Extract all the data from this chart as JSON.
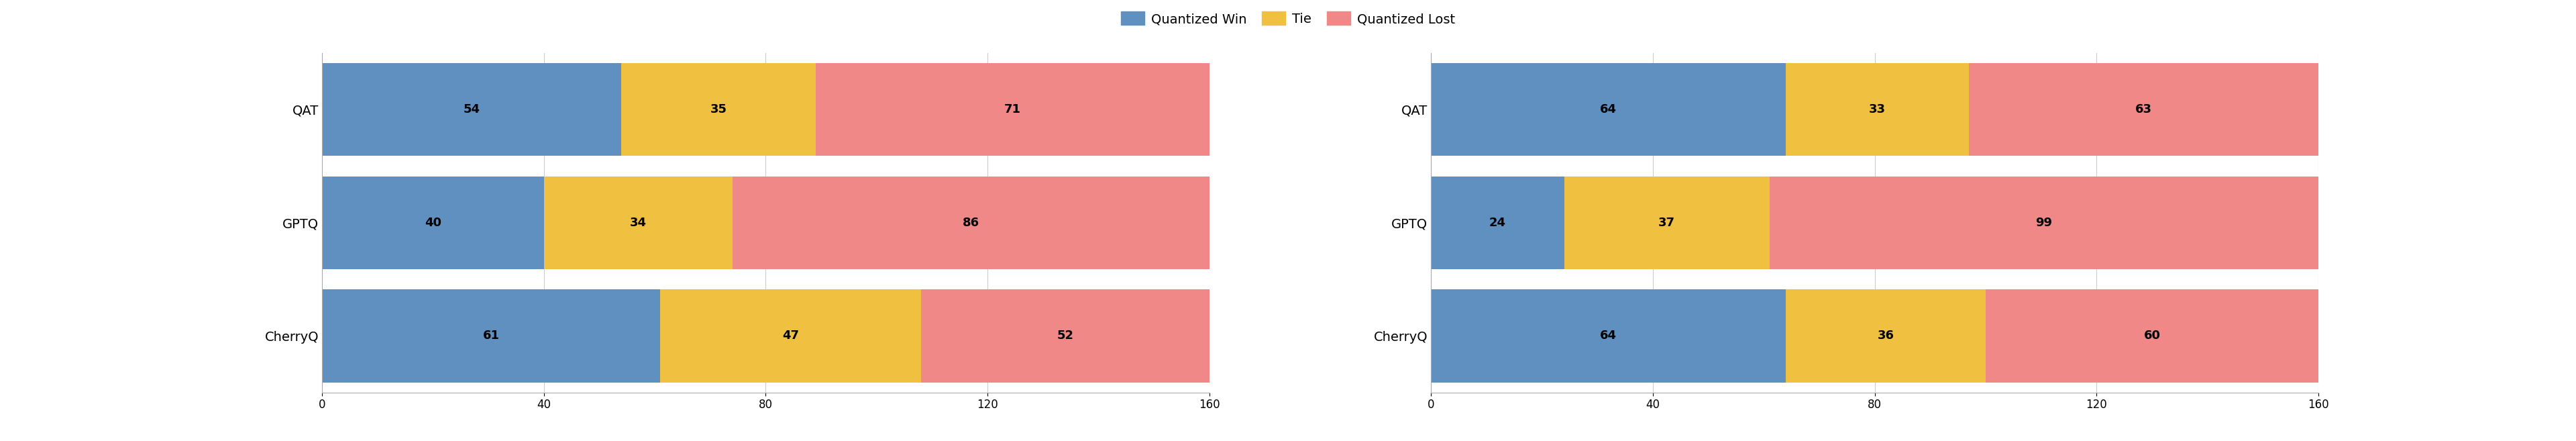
{
  "left": {
    "categories": [
      "QAT",
      "GPTQ",
      "CherryQ"
    ],
    "win": [
      54,
      40,
      61
    ],
    "tie": [
      35,
      34,
      47
    ],
    "lost": [
      71,
      86,
      52
    ]
  },
  "right": {
    "categories": [
      "QAT",
      "GPTQ",
      "CherryQ"
    ],
    "win": [
      64,
      24,
      64
    ],
    "tie": [
      33,
      37,
      36
    ],
    "lost": [
      63,
      99,
      60
    ]
  },
  "xlim": [
    0,
    160
  ],
  "xticks": [
    0,
    40,
    80,
    120,
    160
  ],
  "color_win": "#6090c0",
  "color_tie": "#f0c040",
  "color_lost": "#f08888",
  "legend_labels": [
    "Quantized Win",
    "Tie",
    "Quantized Lost"
  ],
  "bar_height": 0.82,
  "label_fontsize": 14,
  "tick_fontsize": 12,
  "legend_fontsize": 14,
  "value_fontsize": 13,
  "background_color": "#ffffff",
  "spine_color": "#aaaaaa",
  "grid_color": "#cccccc"
}
